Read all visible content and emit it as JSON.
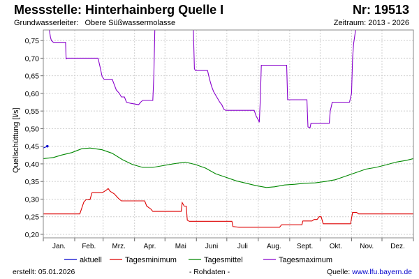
{
  "header": {
    "title": "Messstelle: Hinterhainberg Quelle I",
    "number": "Nr: 19513",
    "aquifer_label": "Grundwasserleiter:",
    "aquifer_value": "Obere Süßwassermolasse",
    "period": "Zeitraum: 2013 - 2026"
  },
  "footer": {
    "created": "erstellt:  05.01.2026",
    "rawdata": "- Rohdaten -",
    "source_label": "Quelle: ",
    "source_url": "www.lfu.bayern.de"
  },
  "chart_data": {
    "type": "line",
    "ylabel": "Quellschüttung [l/s]",
    "ylim": [
      0.19,
      0.78
    ],
    "yticks": [
      "0,20",
      "0,25",
      "0,30",
      "0,35",
      "0,40",
      "0,45",
      "0,50",
      "0,55",
      "0,60",
      "0,65",
      "0,70",
      "0,75"
    ],
    "xlim": [
      0,
      365
    ],
    "xticks": [
      "Jan.",
      "Feb.",
      "Mrz.",
      "Apr.",
      "Mai",
      "Juni",
      "Juli",
      "Aug.",
      "Sept.",
      "Okt.",
      "Nov.",
      "Dez."
    ],
    "grid": true,
    "legend_position": "bottom",
    "series": [
      {
        "name": "aktuell",
        "color": "#0000cc",
        "points": [
          [
            0,
            0.445
          ],
          [
            4,
            0.45
          ]
        ]
      },
      {
        "name": "Tagesminimum",
        "color": "#dd0000",
        "points": [
          [
            0,
            0.258
          ],
          [
            36,
            0.258
          ],
          [
            38,
            0.275
          ],
          [
            40,
            0.292
          ],
          [
            42,
            0.298
          ],
          [
            46,
            0.298
          ],
          [
            48,
            0.318
          ],
          [
            58,
            0.318
          ],
          [
            62,
            0.325
          ],
          [
            64,
            0.33
          ],
          [
            66,
            0.322
          ],
          [
            70,
            0.315
          ],
          [
            74,
            0.302
          ],
          [
            77,
            0.295
          ],
          [
            100,
            0.295
          ],
          [
            102,
            0.28
          ],
          [
            106,
            0.272
          ],
          [
            108,
            0.265
          ],
          [
            136,
            0.265
          ],
          [
            137,
            0.29
          ],
          [
            139,
            0.28
          ],
          [
            141,
            0.28
          ],
          [
            142,
            0.24
          ],
          [
            144,
            0.237
          ],
          [
            186,
            0.237
          ],
          [
            187,
            0.222
          ],
          [
            193,
            0.22
          ],
          [
            233,
            0.22
          ],
          [
            235,
            0.227
          ],
          [
            255,
            0.227
          ],
          [
            256,
            0.238
          ],
          [
            265,
            0.238
          ],
          [
            267,
            0.242
          ],
          [
            270,
            0.242
          ],
          [
            272,
            0.25
          ],
          [
            274,
            0.25
          ],
          [
            276,
            0.23
          ],
          [
            303,
            0.23
          ],
          [
            305,
            0.262
          ],
          [
            309,
            0.262
          ],
          [
            311,
            0.258
          ],
          [
            365,
            0.258
          ]
        ]
      },
      {
        "name": "Tagesmittel",
        "color": "#008800",
        "points": [
          [
            0,
            0.415
          ],
          [
            10,
            0.418
          ],
          [
            18,
            0.425
          ],
          [
            28,
            0.432
          ],
          [
            38,
            0.443
          ],
          [
            46,
            0.445
          ],
          [
            58,
            0.44
          ],
          [
            68,
            0.43
          ],
          [
            78,
            0.412
          ],
          [
            88,
            0.398
          ],
          [
            98,
            0.39
          ],
          [
            108,
            0.39
          ],
          [
            118,
            0.395
          ],
          [
            128,
            0.4
          ],
          [
            140,
            0.405
          ],
          [
            150,
            0.398
          ],
          [
            160,
            0.388
          ],
          [
            170,
            0.372
          ],
          [
            180,
            0.362
          ],
          [
            190,
            0.352
          ],
          [
            200,
            0.345
          ],
          [
            210,
            0.338
          ],
          [
            220,
            0.333
          ],
          [
            228,
            0.335
          ],
          [
            238,
            0.34
          ],
          [
            248,
            0.342
          ],
          [
            258,
            0.345
          ],
          [
            268,
            0.346
          ],
          [
            278,
            0.35
          ],
          [
            288,
            0.355
          ],
          [
            298,
            0.365
          ],
          [
            308,
            0.375
          ],
          [
            318,
            0.385
          ],
          [
            328,
            0.39
          ],
          [
            338,
            0.397
          ],
          [
            348,
            0.405
          ],
          [
            358,
            0.41
          ],
          [
            365,
            0.415
          ]
        ]
      },
      {
        "name": "Tagesmaximum",
        "color": "#8800cc",
        "points": [
          [
            6,
            0.78
          ],
          [
            7,
            0.76
          ],
          [
            8,
            0.75
          ],
          [
            10,
            0.745
          ],
          [
            22,
            0.745
          ],
          [
            22.5,
            0.697
          ],
          [
            23,
            0.7
          ],
          [
            54,
            0.7
          ],
          [
            56,
            0.675
          ],
          [
            58,
            0.648
          ],
          [
            60,
            0.64
          ],
          [
            68,
            0.64
          ],
          [
            70,
            0.625
          ],
          [
            72,
            0.61
          ],
          [
            75,
            0.6
          ],
          [
            77,
            0.59
          ],
          [
            80,
            0.59
          ],
          [
            82,
            0.575
          ],
          [
            86,
            0.572
          ],
          [
            94,
            0.568
          ],
          [
            96,
            0.575
          ],
          [
            98,
            0.58
          ],
          [
            108,
            0.58
          ],
          [
            109,
            0.65
          ],
          [
            110,
            0.78
          ],
          [
            148,
            0.78
          ],
          [
            149,
            0.67
          ],
          [
            150,
            0.665
          ],
          [
            162,
            0.665
          ],
          [
            164,
            0.64
          ],
          [
            166,
            0.62
          ],
          [
            168,
            0.605
          ],
          [
            170,
            0.595
          ],
          [
            172,
            0.585
          ],
          [
            174,
            0.575
          ],
          [
            176,
            0.568
          ],
          [
            178,
            0.555
          ],
          [
            180,
            0.552
          ],
          [
            208,
            0.552
          ],
          [
            210,
            0.535
          ],
          [
            212,
            0.525
          ],
          [
            213,
            0.518
          ],
          [
            214,
            0.58
          ],
          [
            215,
            0.68
          ],
          [
            240,
            0.68
          ],
          [
            241,
            0.582
          ],
          [
            260,
            0.582
          ],
          [
            261,
            0.505
          ],
          [
            263,
            0.502
          ],
          [
            264,
            0.515
          ],
          [
            282,
            0.515
          ],
          [
            283,
            0.55
          ],
          [
            285,
            0.575
          ],
          [
            302,
            0.575
          ],
          [
            304,
            0.6
          ],
          [
            305,
            0.7
          ],
          [
            306,
            0.74
          ],
          [
            308,
            0.78
          ]
        ]
      }
    ]
  }
}
